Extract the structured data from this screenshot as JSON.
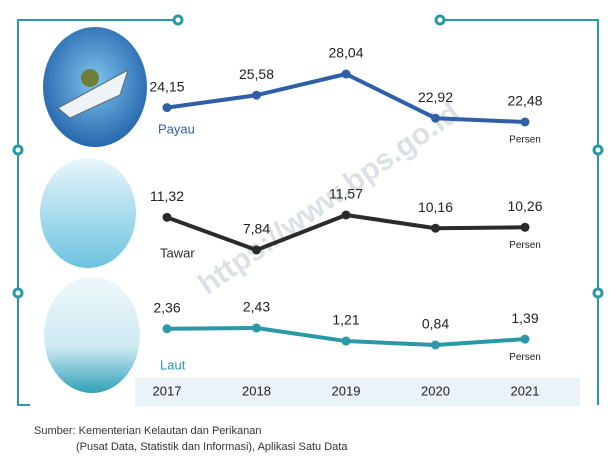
{
  "chart_data": {
    "type": "line",
    "categories": [
      "2017",
      "2018",
      "2019",
      "2020",
      "2021"
    ],
    "unit": "Persen",
    "series": [
      {
        "name": "Payau",
        "color": "#2f5fa6",
        "values": [
          24.15,
          25.58,
          28.04,
          22.92,
          22.48
        ],
        "value_labels": [
          "24,15",
          "25,58",
          "28,04",
          "22,92",
          "22,48"
        ]
      },
      {
        "name": "Tawar",
        "color": "#2b2b2b",
        "values": [
          11.32,
          7.84,
          11.57,
          10.16,
          10.26
        ],
        "value_labels": [
          "11,32",
          "7,84",
          "11,57",
          "10,16",
          "10,26"
        ]
      },
      {
        "name": "Laut",
        "color": "#2a98a6",
        "values": [
          2.36,
          2.43,
          1.21,
          0.84,
          1.39
        ],
        "value_labels": [
          "2,36",
          "2,43",
          "1,21",
          "0,84",
          "1,39"
        ]
      }
    ]
  },
  "watermark": "https://www.bps.go.id",
  "source": [
    "Sumber: Kementerian Kelautan dan Perikanan",
    "(Pusat Data, Statistik dan Informasi), Aplikasi Satu Data"
  ]
}
